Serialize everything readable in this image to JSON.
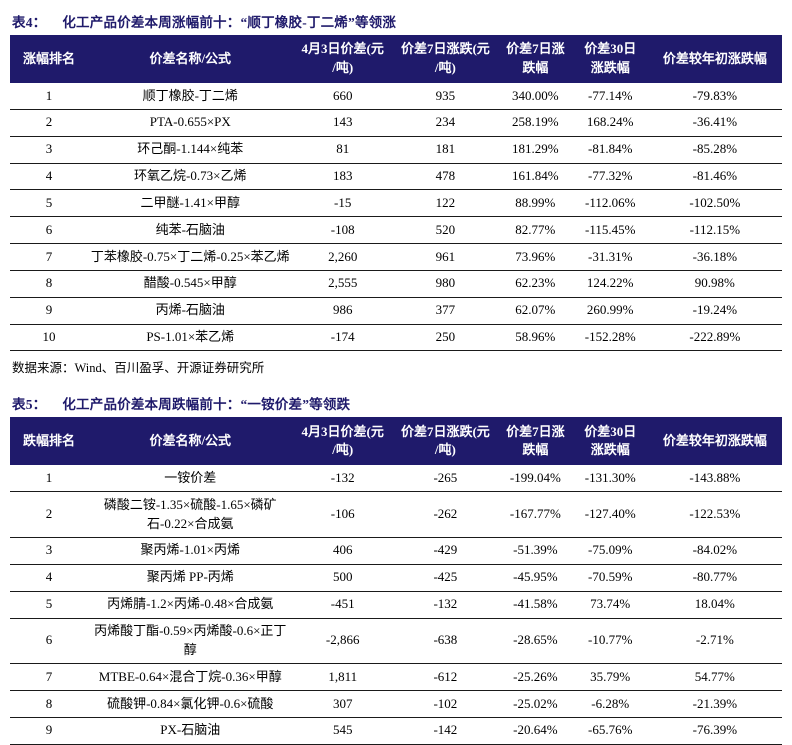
{
  "colors": {
    "header_navy": "#1F1A6B",
    "title_navy": "#1F1A6B",
    "body_text": "#000000",
    "header_text": "#FFFFFF"
  },
  "table4": {
    "title_label": "表4：",
    "title": "化工产品价差本周涨幅前十：“顺丁橡胶-丁二烯”等领涨",
    "columns": [
      "涨幅排名",
      "价差名称/公式",
      "4月3日价差(元\n/吨)",
      "价差7日涨跌(元\n/吨)",
      "价差7日涨\n跌幅",
      "价差30日\n涨跌幅",
      "价差较年初涨跌幅"
    ],
    "rows": [
      [
        "1",
        "顺丁橡胶-丁二烯",
        "660",
        "935",
        "340.00%",
        "-77.14%",
        "-79.83%"
      ],
      [
        "2",
        "PTA-0.655×PX",
        "143",
        "234",
        "258.19%",
        "168.24%",
        "-36.41%"
      ],
      [
        "3",
        "环己酮-1.144×纯苯",
        "81",
        "181",
        "181.29%",
        "-81.84%",
        "-85.28%"
      ],
      [
        "4",
        "环氧乙烷-0.73×乙烯",
        "183",
        "478",
        "161.84%",
        "-77.32%",
        "-81.46%"
      ],
      [
        "5",
        "二甲醚-1.41×甲醇",
        "-15",
        "122",
        "88.99%",
        "-112.06%",
        "-102.50%"
      ],
      [
        "6",
        "纯苯-石脑油",
        "-108",
        "520",
        "82.77%",
        "-115.45%",
        "-112.15%"
      ],
      [
        "7",
        "丁苯橡胶-0.75×丁二烯-0.25×苯乙烯",
        "2,260",
        "961",
        "73.96%",
        "-31.31%",
        "-36.18%"
      ],
      [
        "8",
        "醋酸-0.545×甲醇",
        "2,555",
        "980",
        "62.23%",
        "124.22%",
        "90.98%"
      ],
      [
        "9",
        "丙烯-石脑油",
        "986",
        "377",
        "62.07%",
        "260.99%",
        "-19.24%"
      ],
      [
        "10",
        "PS-1.01×苯乙烯",
        "-174",
        "250",
        "58.96%",
        "-152.28%",
        "-222.89%"
      ]
    ],
    "source": "数据来源：Wind、百川盈孚、开源证券研究所"
  },
  "table5": {
    "title_label": "表5：",
    "title": "化工产品价差本周跌幅前十：“一铵价差”等领跌",
    "columns": [
      "跌幅排名",
      "价差名称/公式",
      "4月3日价差(元\n/吨)",
      "价差7日涨跌(元\n/吨)",
      "价差7日涨\n跌幅",
      "价差30日\n涨跌幅",
      "价差较年初涨跌幅"
    ],
    "rows": [
      [
        "1",
        "一铵价差",
        "-132",
        "-265",
        "-199.04%",
        "-131.30%",
        "-143.88%"
      ],
      [
        "2",
        "磷酸二铵-1.35×硫酸-1.65×磷矿石-0.22×合成氨",
        "-106",
        "-262",
        "-167.77%",
        "-127.40%",
        "-122.53%"
      ],
      [
        "3",
        "聚丙烯-1.01×丙烯",
        "406",
        "-429",
        "-51.39%",
        "-75.09%",
        "-84.02%"
      ],
      [
        "4",
        "聚丙烯 PP-丙烯",
        "500",
        "-425",
        "-45.95%",
        "-70.59%",
        "-80.77%"
      ],
      [
        "5",
        "丙烯腈-1.2×丙烯-0.48×合成氨",
        "-451",
        "-132",
        "-41.58%",
        "73.74%",
        "18.04%"
      ],
      [
        "6",
        "丙烯酸丁酯-0.59×丙烯酸-0.6×正丁醇",
        "-2,866",
        "-638",
        "-28.65%",
        "-10.77%",
        "-2.71%"
      ],
      [
        "7",
        "MTBE-0.64×混合丁烷-0.36×甲醇",
        "1,811",
        "-612",
        "-25.26%",
        "35.79%",
        "54.77%"
      ],
      [
        "8",
        "硫酸钾-0.84×氯化钾-0.6×硫酸",
        "307",
        "-102",
        "-25.02%",
        "-6.28%",
        "-21.39%"
      ],
      [
        "9",
        "PX-石脑油",
        "545",
        "-142",
        "-20.64%",
        "-65.76%",
        "-76.39%"
      ]
    ]
  }
}
